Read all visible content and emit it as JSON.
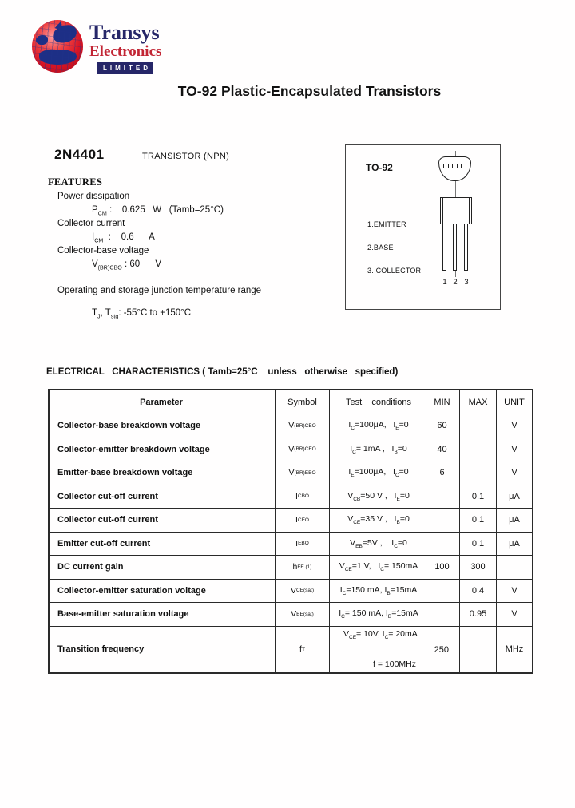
{
  "logo": {
    "name": "Transys",
    "sub": "Electronics",
    "tag": "LIMITED"
  },
  "title": "TO-92 Plastic-Encapsulated Transistors",
  "part": {
    "number": "2N4401",
    "type": "TRANSISTOR (NPN)"
  },
  "features": {
    "heading": "FEATURES",
    "items": [
      {
        "label": "Power dissipation",
        "value": "P~CM~ :    0.625   W   (Tamb=25°C)"
      },
      {
        "label": "Collector current",
        "value": "I~CM~  :    0.6      A"
      },
      {
        "label": "Collector-base voltage",
        "value": "V~(BR)CBO~ : 60      V"
      }
    ],
    "temp_label": "Operating and storage junction temperature range",
    "temp_value": "T~J~, T~stg~: -55°C to +150°C"
  },
  "package": {
    "name": "TO-92",
    "pin_labels": [
      "1.EMITTER",
      "2.BASE",
      "3. COLLECTOR"
    ],
    "pin_numbers": [
      "1",
      "2",
      "3"
    ]
  },
  "table": {
    "heading": "ELECTRICAL   CHARACTERISTICS ( Tamb=25°C    unless   otherwise   specified)",
    "headers": {
      "parameter": "Parameter",
      "symbol": "Symbol",
      "conditions": "Test    conditions",
      "min": "MIN",
      "max": "MAX",
      "unit": "UNIT"
    },
    "rows": [
      {
        "param": "Collector-base breakdown voltage",
        "symbol": "V~(BR)CBO~",
        "cond": "I~C~=100μA,   I~E~=0",
        "min": "60",
        "max": "",
        "unit": "V"
      },
      {
        "param": "Collector-emitter breakdown voltage",
        "symbol": "V~(BR)CEO~",
        "cond": "I~C~= 1mA ,   I~B~=0",
        "min": "40",
        "max": "",
        "unit": "V"
      },
      {
        "param": "Emitter-base breakdown voltage",
        "symbol": "V~(BR)EBO~",
        "cond": "I~E~=100μA,   I~C~=0",
        "min": "6",
        "max": "",
        "unit": "V"
      },
      {
        "param": "Collector cut-off current",
        "symbol": "I~CBO~",
        "cond": "V~CB~=50 V ,   I~E~=0",
        "min": "",
        "max": "0.1",
        "unit": "μA"
      },
      {
        "param": "Collector cut-off current",
        "symbol": "I~CEO~",
        "cond": "V~CE~=35 V ,   I~B~=0",
        "min": "",
        "max": "0.1",
        "unit": "μA"
      },
      {
        "param": "Emitter cut-off current",
        "symbol": "I~EBO~",
        "cond": "V~EB~=5V ,    I~C~=0",
        "min": "",
        "max": "0.1",
        "unit": "μA"
      },
      {
        "param": "DC current gain",
        "symbol": "h~FE (1)~",
        "cond": "V~CE~=1 V,   I~C~= 150mA",
        "min": "100",
        "max": "300",
        "unit": ""
      },
      {
        "param": "Collector-emitter saturation voltage",
        "symbol": "V~CE(sat)~",
        "cond": "I~C~=150 mA, I~B~=15mA",
        "min": "",
        "max": "0.4",
        "unit": "V"
      },
      {
        "param": "Base-emitter saturation voltage",
        "symbol": "V~BE(sat)~",
        "cond": "I~C~= 150 mA, I~B~=15mA",
        "min": "",
        "max": "0.95",
        "unit": "V"
      },
      {
        "param": "Transition frequency",
        "symbol": "f ~T~",
        "cond": "V~CE~= 10V, I~C~= 20mA",
        "cond2": "f = 100MHz",
        "min": "250",
        "max": "",
        "unit": "MHz"
      }
    ]
  },
  "colors": {
    "navy": "#262668",
    "red": "#c22534",
    "globe_red": "#d81525"
  }
}
